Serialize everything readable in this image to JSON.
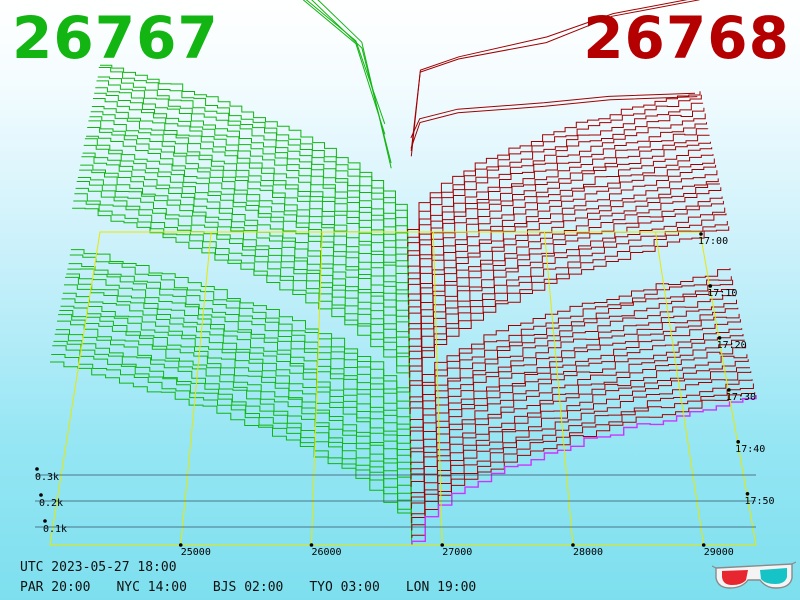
{
  "header": {
    "bid_price": "26767",
    "ask_price": "26768"
  },
  "colors": {
    "bid": "#12b512",
    "ask": "#a00000",
    "frame": "#e8e800",
    "latest": "#cc33ff",
    "background_top": "#ffffff",
    "background_bottom": "#7ddfee"
  },
  "chart_data": {
    "type": "area",
    "view": "3d-depth-waterfall",
    "x_axis": {
      "ticks": [
        "25000",
        "26000",
        "27000",
        "28000",
        "29000"
      ],
      "tick_values": [
        25000,
        26000,
        27000,
        28000,
        29000
      ],
      "xlim": [
        24000,
        29400
      ]
    },
    "y_axis": {
      "ticks": [
        "0.1k",
        "0.2k",
        "0.3k"
      ],
      "tick_values": [
        100,
        200,
        300
      ]
    },
    "time_axis": {
      "ticks": [
        "17:00",
        "17:10",
        "17:20",
        "17:30",
        "17:40",
        "17:50"
      ]
    },
    "mid_price": 26767.5,
    "bid_price": 26767,
    "ask_price": 26768,
    "snapshots": 44,
    "bid_depth_at_24000": 250,
    "ask_depth_at_29400": 210,
    "bid_upper_curves": [
      [
        [
          24000,
          340
        ],
        [
          24800,
          335
        ],
        [
          25400,
          300
        ],
        [
          26000,
          270
        ],
        [
          26500,
          190
        ],
        [
          26767,
          0
        ]
      ],
      [
        [
          24000,
          330
        ],
        [
          24800,
          325
        ],
        [
          25400,
          290
        ],
        [
          26000,
          255
        ],
        [
          26500,
          175
        ],
        [
          26767,
          0
        ]
      ],
      [
        [
          24000,
          310
        ],
        [
          24800,
          290
        ],
        [
          25400,
          250
        ],
        [
          26000,
          210
        ],
        [
          26500,
          140
        ],
        [
          26767,
          0
        ]
      ],
      [
        [
          24000,
          300
        ],
        [
          24800,
          270
        ],
        [
          25400,
          230
        ],
        [
          26000,
          200
        ],
        [
          26500,
          130
        ],
        [
          26767,
          0
        ]
      ]
    ],
    "ask_upper_curves": [
      [
        [
          26768,
          0
        ],
        [
          26850,
          130
        ],
        [
          27200,
          150
        ],
        [
          28000,
          180
        ],
        [
          28600,
          215
        ],
        [
          29400,
          240
        ]
      ],
      [
        [
          26768,
          0
        ],
        [
          26850,
          120
        ],
        [
          27200,
          140
        ],
        [
          28000,
          165
        ],
        [
          28600,
          205
        ],
        [
          29400,
          230
        ]
      ],
      [
        [
          26768,
          0
        ],
        [
          26850,
          40
        ],
        [
          27200,
          55
        ],
        [
          28000,
          65
        ],
        [
          28600,
          75
        ],
        [
          29400,
          80
        ]
      ],
      [
        [
          26768,
          0
        ],
        [
          26850,
          30
        ],
        [
          27200,
          45
        ],
        [
          28000,
          55
        ],
        [
          28600,
          65
        ],
        [
          29400,
          70
        ]
      ]
    ]
  },
  "footer": {
    "datetime": "UTC 2023-05-27 18:00",
    "zones": [
      "PAR 20:00",
      "NYC 14:00",
      "BJS 02:00",
      "TYO 03:00",
      "LON 19:00"
    ]
  },
  "icons": {
    "glasses": "3d-glasses-icon"
  }
}
